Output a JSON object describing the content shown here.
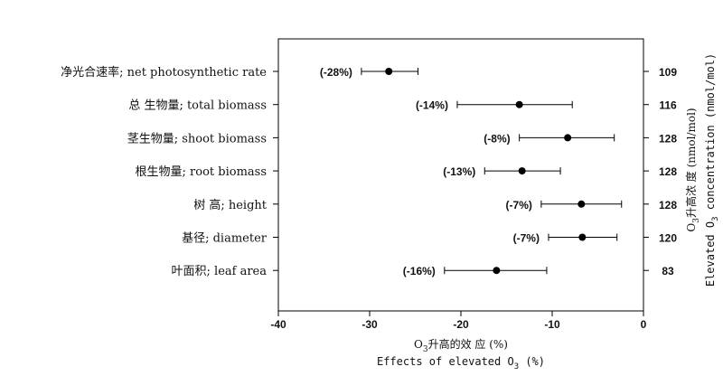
{
  "chart_data": {
    "type": "scatter",
    "style": "forest-plot-with-error-bars",
    "x_axis": {
      "title_cn_prefix": "O",
      "title_cn_sub": "3",
      "title_cn_suffix": "升高的效 应 (%)",
      "title_en_prefix": "Effects of elevated O",
      "title_en_sub": "3",
      "title_en_suffix": " (%)",
      "range": [
        -40,
        0
      ],
      "ticks": [
        -40,
        -30,
        -20,
        -10,
        0
      ],
      "tick_labels": [
        "-40",
        "-30",
        "-20",
        "-10",
        "0"
      ]
    },
    "right_axis": {
      "title_cn_prefix": "O",
      "title_cn_sub": "3",
      "title_cn_suffix": "升高浓 度 (nmol/mol)",
      "title_en_prefix": "Elevated O",
      "title_en_sub": "3",
      "title_en_suffix": " concentration (nmol/mol)"
    },
    "rows": [
      {
        "label": "净光合速率; net photosynthetic rate",
        "mean": -27.9,
        "ci_low": -30.9,
        "ci_high": -24.7,
        "pct_label": "(-28%)",
        "concentration": "109",
        "marker": "filled"
      },
      {
        "label": "总 生物量; total biomass",
        "mean": -13.6,
        "ci_low": -20.4,
        "ci_high": -7.8,
        "pct_label": "(-14%)",
        "concentration": "116",
        "marker": "filled"
      },
      {
        "label": "茎生物量; shoot biomass",
        "mean": -8.3,
        "ci_low": -13.6,
        "ci_high": -3.2,
        "pct_label": "(-8%)",
        "concentration": "128",
        "marker": "filled"
      },
      {
        "label": "根生物量; root biomass",
        "mean": -13.3,
        "ci_low": -17.4,
        "ci_high": -9.1,
        "pct_label": "(-13%)",
        "concentration": "128",
        "marker": "filled"
      },
      {
        "label": "树 高; height",
        "mean": -6.8,
        "ci_low": -11.2,
        "ci_high": -2.4,
        "pct_label": "(-7%)",
        "concentration": "128",
        "marker": "filled"
      },
      {
        "label": "基径; diameter",
        "mean": -6.7,
        "ci_low": -10.4,
        "ci_high": -2.9,
        "pct_label": "(-7%)",
        "concentration": "120",
        "marker": "filled"
      },
      {
        "label": "叶面积; leaf area",
        "mean": -16.1,
        "ci_low": -21.8,
        "ci_high": -10.6,
        "pct_label": "(-16%)",
        "concentration": "83",
        "marker": "filled"
      }
    ]
  }
}
